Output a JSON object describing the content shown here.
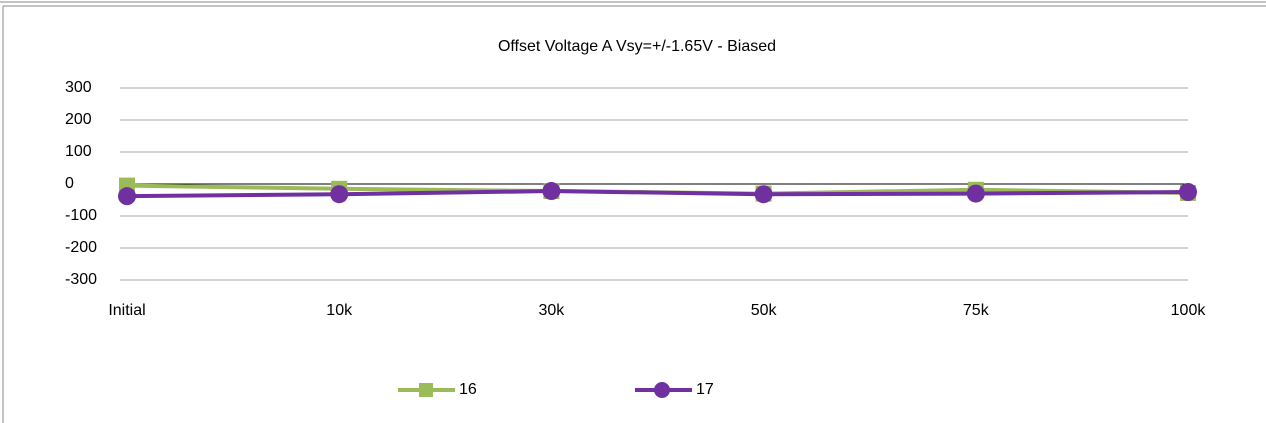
{
  "chart_data": {
    "type": "line",
    "title": "Offset Voltage  A Vsy=+/-1.65V - Biased",
    "categories": [
      "Initial",
      "10k",
      "30k",
      "50k",
      "75k",
      "100k"
    ],
    "series": [
      {
        "name": "16",
        "color": "#9bbb59",
        "marker": "square",
        "values": [
          -5,
          -15,
          -22,
          -30,
          -18,
          -28
        ]
      },
      {
        "name": "17",
        "color": "#7030a0",
        "marker": "circle",
        "values": [
          -38,
          -32,
          -22,
          -32,
          -30,
          -25
        ]
      }
    ],
    "ylim": [
      -300,
      300
    ],
    "yticks": [
      -300,
      -200,
      -100,
      0,
      100,
      200,
      300
    ],
    "grid": true,
    "legend": "bottom"
  }
}
